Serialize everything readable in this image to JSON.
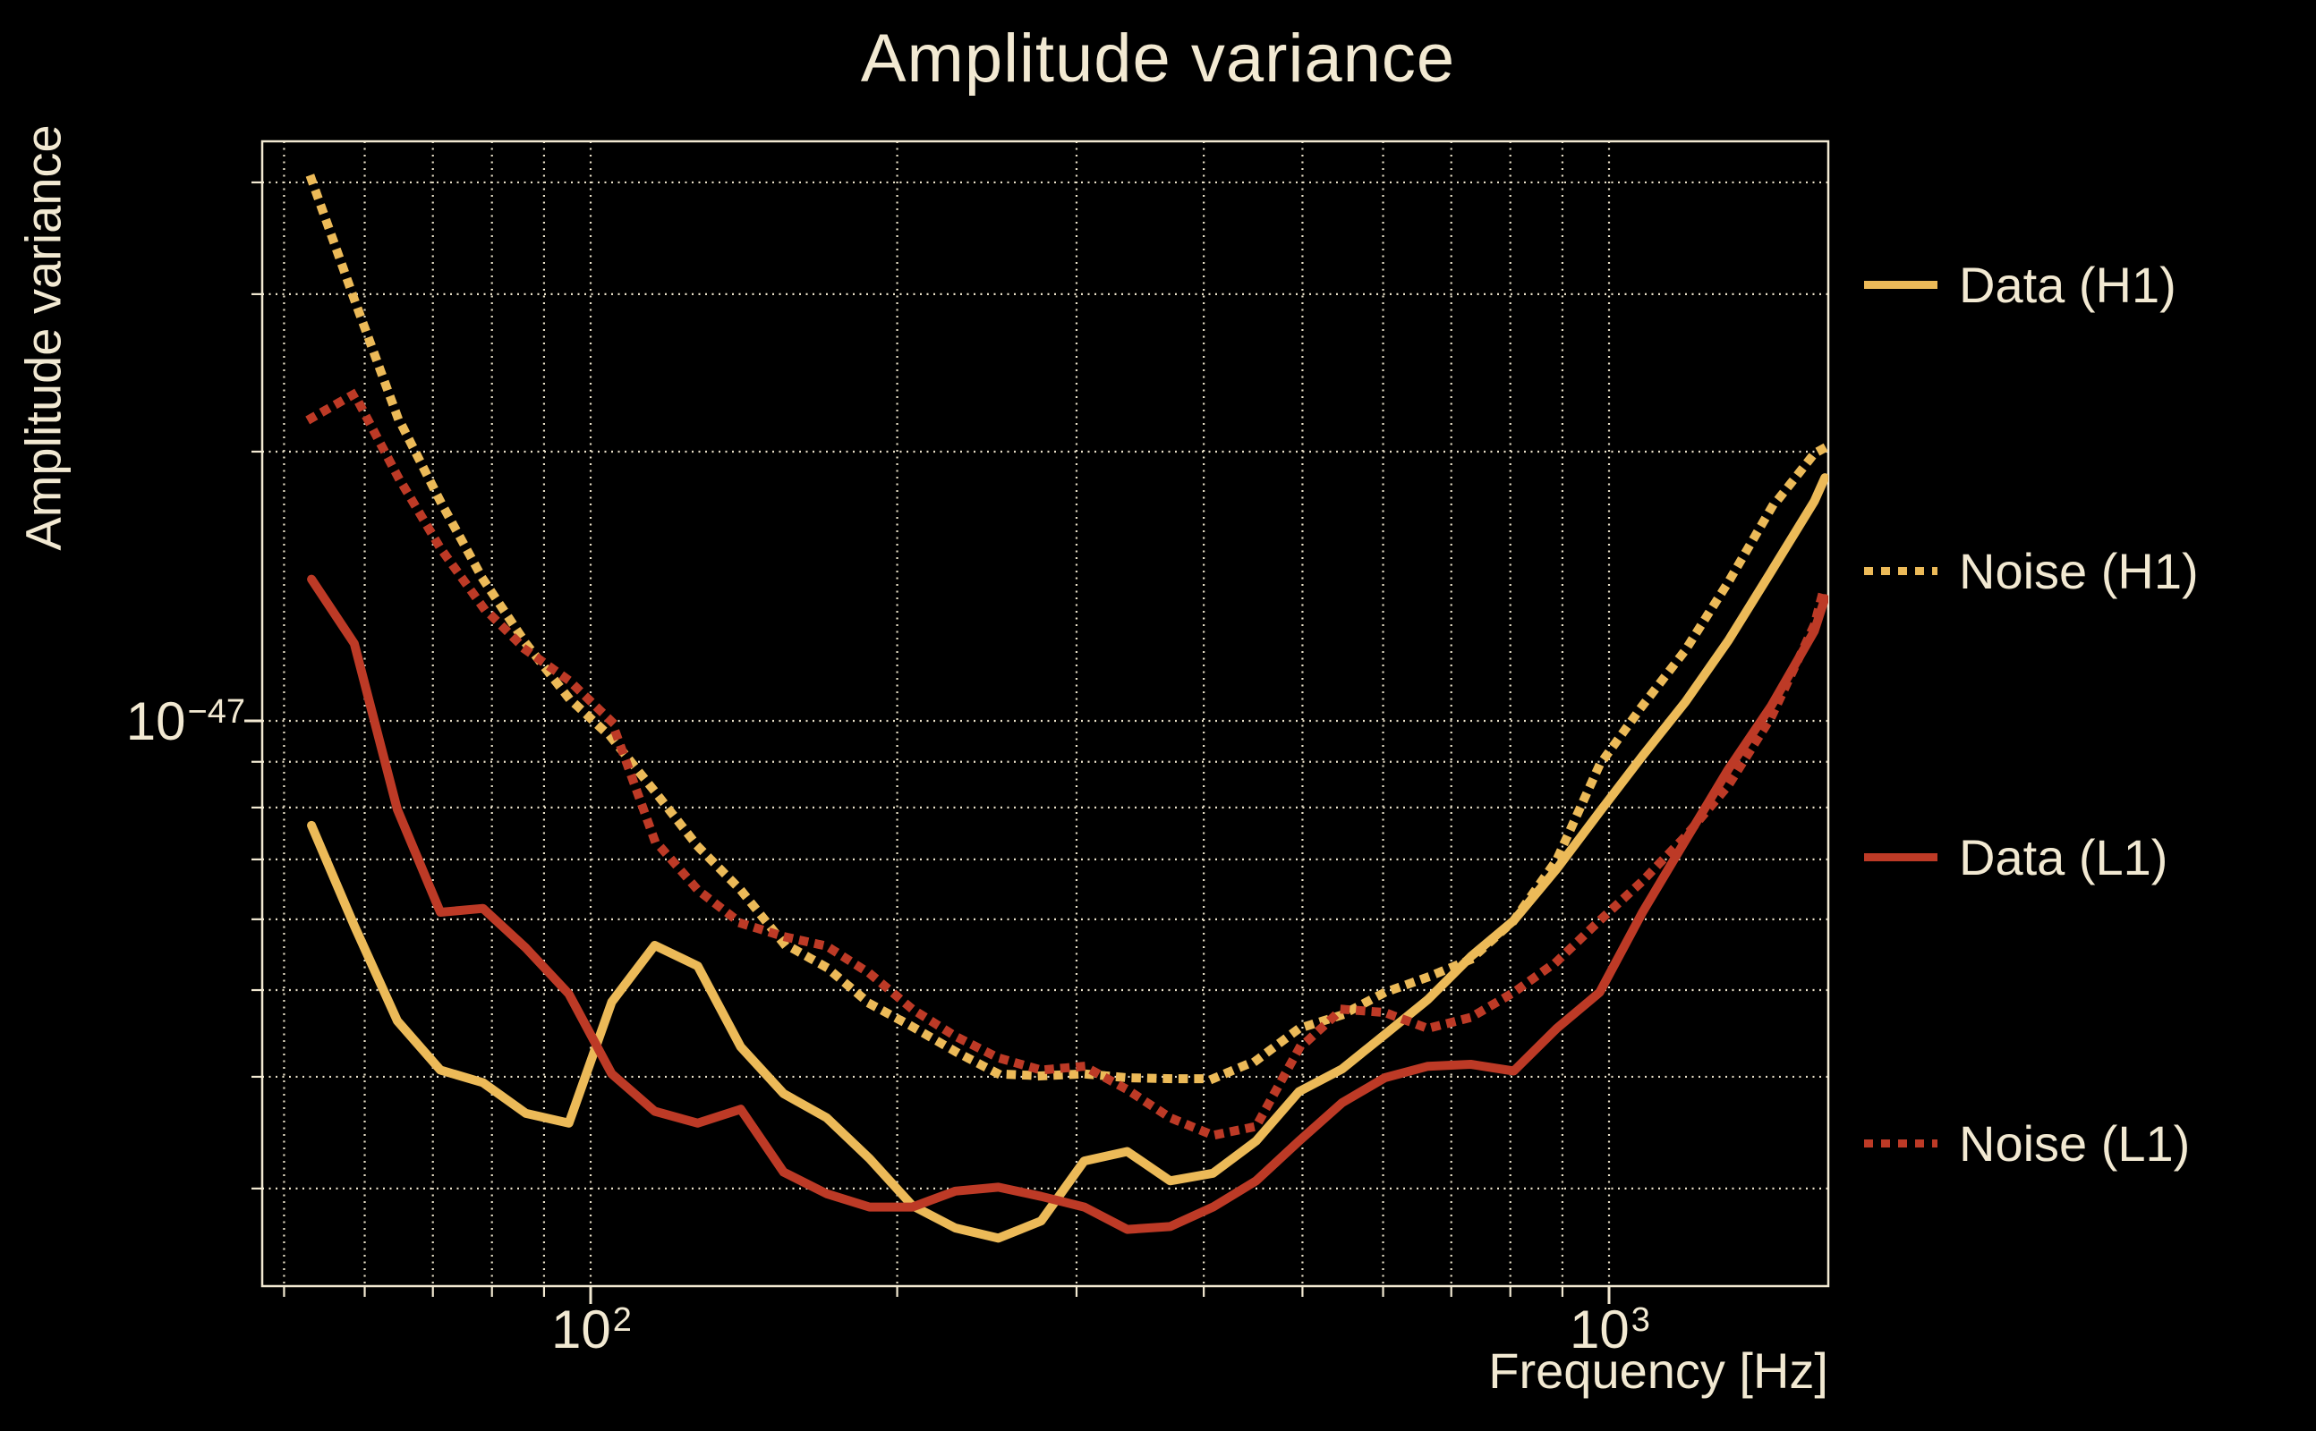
{
  "title": "Amplitude variance",
  "colors": {
    "h1_gold": "#ecba58",
    "l1_red": "#bd3a26",
    "text_cream": "#f2e9d2",
    "grid_cream": "#eae1c9",
    "background": "#000000"
  },
  "axes": {
    "xlabel": "Frequency [Hz]",
    "ylabel": "Amplitude variance",
    "scale": "log-log",
    "grid_style": "dotted",
    "x_tick_labels": [
      {
        "base": "10",
        "exp": "2",
        "value_hz": 100
      },
      {
        "base": "10",
        "exp": "3",
        "value_hz": 1000
      }
    ],
    "y_tick_labels": [
      {
        "base": "10",
        "exp": "−47",
        "value": 1e-47
      }
    ],
    "x_gridlines_hz": [
      50,
      60,
      70,
      80,
      90,
      100,
      200,
      300,
      400,
      500,
      600,
      700,
      800,
      900,
      1000
    ],
    "x_major_hz": [
      100,
      1000
    ],
    "y_gridlines_e48": [
      3,
      4,
      5,
      6,
      7,
      8,
      9,
      10,
      20,
      30,
      40
    ],
    "y_major_e48": [
      10
    ],
    "x_range_hz": [
      47.5,
      1645
    ],
    "y_range_e48": [
      2.33,
      44.6
    ]
  },
  "legend": [
    {
      "label": "Data (H1)",
      "style": "solid",
      "color": "#ecba58"
    },
    {
      "label": "Noise (H1)",
      "style": "dotted",
      "color": "#ecba58"
    },
    {
      "label": "Data (L1)",
      "style": "solid",
      "color": "#bd3a26"
    },
    {
      "label": "Noise (L1)",
      "style": "dotted",
      "color": "#bd3a26"
    }
  ],
  "chart_data": {
    "type": "line",
    "title": "Amplitude variance",
    "xlabel": "Frequency [Hz]",
    "ylabel": "Amplitude variance",
    "x_axis": "log frequency, Hz",
    "y_axis": "log amplitude variance; values below are in units of 1e-48",
    "legend_position": "right, outside plot",
    "x": [
      53.2,
      58.6,
      64.6,
      71.2,
      78.4,
      86.4,
      95.2,
      104.9,
      115.6,
      127.4,
      140.4,
      154.7,
      170.5,
      187.9,
      207.0,
      228.1,
      251.4,
      277.0,
      305.3,
      336.4,
      370.7,
      408.5,
      450.2,
      496.1,
      546.7,
      602.4,
      663.8,
      731.5,
      806.1,
      888.3,
      978.9,
      1078.7,
      1188.7,
      1309.9,
      1443.5,
      1590.7,
      1629.0
    ],
    "series": [
      {
        "name": "Data (H1)",
        "key": "data_h1",
        "style": "solid",
        "color": "#ecba58",
        "values_e48": [
          7.64,
          5.9,
          4.62,
          4.07,
          3.94,
          3.64,
          3.55,
          4.85,
          5.61,
          5.32,
          4.32,
          3.83,
          3.6,
          3.24,
          2.87,
          2.71,
          2.64,
          2.76,
          3.22,
          3.3,
          3.06,
          3.12,
          3.39,
          3.85,
          4.08,
          4.46,
          4.88,
          5.45,
          5.98,
          6.83,
          7.91,
          9.14,
          10.5,
          12.3,
          14.7,
          17.6,
          18.7
        ]
      },
      {
        "name": "Noise (H1)",
        "key": "noise_h1",
        "style": "dotted",
        "color": "#ecba58",
        "values_e48": [
          40.3,
          29.6,
          21.9,
          17.6,
          14.4,
          12.2,
          10.6,
          9.57,
          8.34,
          7.24,
          6.47,
          5.64,
          5.3,
          4.83,
          4.55,
          4.27,
          4.03,
          4.01,
          4.03,
          3.99,
          3.98,
          3.98,
          4.17,
          4.53,
          4.69,
          4.97,
          5.17,
          5.41,
          5.98,
          6.99,
          8.93,
          10.4,
          12.0,
          14.3,
          17.3,
          19.9,
          20.2
        ]
      },
      {
        "name": "Data (L1)",
        "key": "data_l1",
        "style": "solid",
        "color": "#bd3a26",
        "values_e48": [
          14.4,
          12.2,
          7.96,
          6.11,
          6.17,
          5.57,
          4.95,
          4.03,
          3.66,
          3.55,
          3.68,
          3.13,
          2.96,
          2.86,
          2.86,
          2.98,
          3.01,
          2.94,
          2.86,
          2.7,
          2.72,
          2.86,
          3.06,
          3.39,
          3.74,
          3.99,
          4.11,
          4.13,
          4.06,
          4.53,
          4.97,
          6.11,
          7.35,
          8.83,
          10.4,
          12.6,
          13.7
        ]
      },
      {
        "name": "Noise (L1)",
        "key": "noise_l1",
        "style": "dotted",
        "color": "#bd3a26",
        "values_e48": [
          21.8,
          23.2,
          18.8,
          15.6,
          13.4,
          12.0,
          11.1,
          9.98,
          7.35,
          6.47,
          5.94,
          5.74,
          5.6,
          5.22,
          4.76,
          4.44,
          4.2,
          4.07,
          4.11,
          3.87,
          3.6,
          3.44,
          3.52,
          4.3,
          4.76,
          4.72,
          4.53,
          4.66,
          4.97,
          5.38,
          5.98,
          6.62,
          7.43,
          8.47,
          10.1,
          12.8,
          14.2
        ]
      }
    ]
  }
}
